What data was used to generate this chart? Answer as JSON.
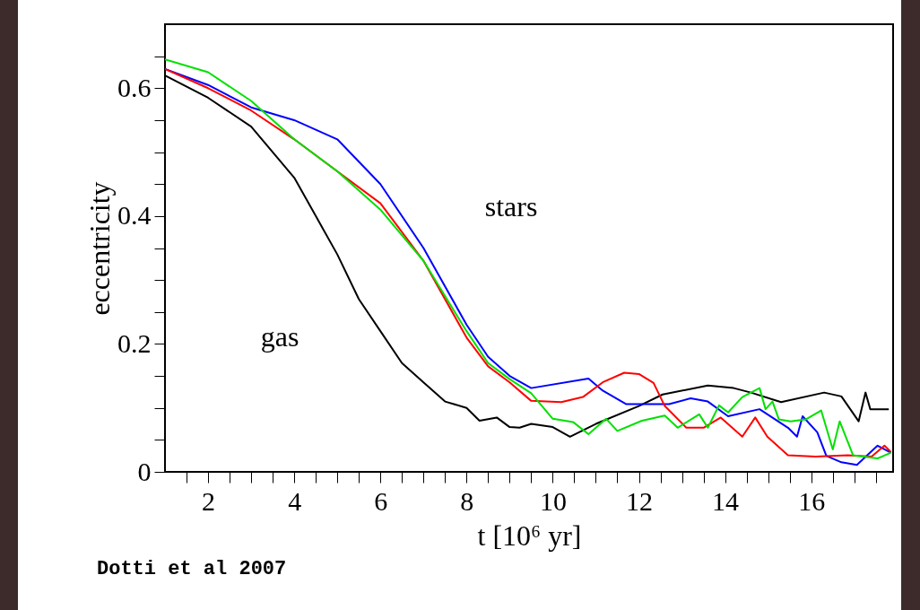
{
  "chart_data": {
    "type": "line",
    "xlabel": "t [10⁶ yr]",
    "ylabel": "eccentricity",
    "xlim": [
      1,
      17.9
    ],
    "ylim": [
      0,
      0.7
    ],
    "xticks": [
      {
        "value": 1.5,
        "label": null
      },
      2,
      {
        "value": 2.5,
        "label": null
      },
      {
        "value": 3,
        "label": null
      },
      {
        "value": 3.5,
        "label": null
      },
      4,
      {
        "value": 4.5,
        "label": null
      },
      {
        "value": 5,
        "label": null
      },
      {
        "value": 5.5,
        "label": null
      },
      6,
      {
        "value": 6.5,
        "label": null
      },
      {
        "value": 7,
        "label": null
      },
      {
        "value": 7.5,
        "label": null
      },
      8,
      {
        "value": 8.5,
        "label": null
      },
      {
        "value": 9,
        "label": null
      },
      {
        "value": 9.5,
        "label": null
      },
      10,
      {
        "value": 10.5,
        "label": null
      },
      {
        "value": 11,
        "label": null
      },
      {
        "value": 11.5,
        "label": null
      },
      12,
      {
        "value": 12.5,
        "label": null
      },
      {
        "value": 13,
        "label": null
      },
      {
        "value": 13.5,
        "label": null
      },
      14,
      {
        "value": 14.5,
        "label": null
      },
      {
        "value": 15,
        "label": null
      },
      {
        "value": 15.5,
        "label": null
      },
      16,
      {
        "value": 16.5,
        "label": null
      },
      {
        "value": 17,
        "label": null
      },
      {
        "value": 17.5,
        "label": null
      }
    ],
    "yticks": [
      0,
      {
        "value": 0.05,
        "label": null
      },
      {
        "value": 0.1,
        "label": null
      },
      {
        "value": 0.15,
        "label": null
      },
      0.2,
      {
        "value": 0.25,
        "label": null
      },
      {
        "value": 0.3,
        "label": null
      },
      {
        "value": 0.35,
        "label": null
      },
      0.4,
      {
        "value": 0.45,
        "label": null
      },
      {
        "value": 0.5,
        "label": null
      },
      {
        "value": 0.55,
        "label": null
      },
      0.6,
      {
        "value": 0.65,
        "label": null
      }
    ],
    "grid": false,
    "marker": "none",
    "line_style": "solid",
    "series": [
      {
        "color": "#000000",
        "x": [
          1,
          2,
          3,
          4,
          4.5,
          5,
          5.5,
          6,
          6.5,
          7,
          7.5,
          8,
          8.3,
          8.7,
          9,
          9.23,
          9.5,
          10,
          10.4,
          11,
          12,
          12.55,
          13.6,
          14.2,
          14.6,
          15.3,
          16.3,
          16.7,
          17.1,
          17.26,
          17.37,
          17.8
        ],
        "values": [
          0.62,
          0.585,
          0.54,
          0.46,
          0.4,
          0.34,
          0.27,
          0.22,
          0.17,
          0.14,
          0.11,
          0.1,
          0.08,
          0.085,
          0.07,
          0.069,
          0.075,
          0.07,
          0.055,
          0.075,
          0.103,
          0.121,
          0.135,
          0.131,
          0.124,
          0.109,
          0.124,
          0.118,
          0.079,
          0.124,
          0.098,
          0.098
        ]
      },
      {
        "color": "#0000ff",
        "x": [
          1,
          2,
          3,
          4,
          5,
          6,
          7,
          8,
          8.5,
          9,
          9.5,
          10.83,
          11.16,
          11.7,
          12.7,
          13.2,
          13.6,
          14.07,
          14.8,
          15.46,
          15.67,
          15.8,
          16.14,
          16.35,
          16.7,
          17.06,
          17.54,
          17.85
        ],
        "values": [
          0.63,
          0.605,
          0.57,
          0.55,
          0.52,
          0.45,
          0.35,
          0.23,
          0.18,
          0.15,
          0.131,
          0.146,
          0.127,
          0.106,
          0.106,
          0.115,
          0.11,
          0.087,
          0.098,
          0.069,
          0.055,
          0.087,
          0.062,
          0.025,
          0.015,
          0.011,
          0.041,
          0.03
        ]
      },
      {
        "color": "#ff0000",
        "x": [
          1,
          2,
          3,
          4,
          5,
          6,
          7,
          8,
          8.5,
          9,
          9.5,
          10.2,
          10.7,
          11.16,
          11.66,
          12,
          12.34,
          12.6,
          13.1,
          13.5,
          13.9,
          14.4,
          14.7,
          14.98,
          15.46,
          16.1,
          16.85,
          17.4,
          17.7,
          17.85
        ],
        "values": [
          0.63,
          0.6,
          0.565,
          0.52,
          0.47,
          0.42,
          0.33,
          0.21,
          0.165,
          0.14,
          0.111,
          0.109,
          0.117,
          0.14,
          0.155,
          0.153,
          0.139,
          0.103,
          0.069,
          0.069,
          0.085,
          0.055,
          0.085,
          0.055,
          0.026,
          0.024,
          0.026,
          0.024,
          0.041,
          0.031
        ]
      },
      {
        "color": "#00e000",
        "x": [
          1,
          2,
          3,
          4,
          5,
          6,
          7,
          8,
          8.5,
          9,
          9.5,
          10,
          10.47,
          10.83,
          11.24,
          11.5,
          12.07,
          12.6,
          12.9,
          13.4,
          13.6,
          13.86,
          14.07,
          14.4,
          14.8,
          14.94,
          15.1,
          15.25,
          15.52,
          15.87,
          16.23,
          16.5,
          16.66,
          16.97,
          17.54,
          17.85
        ],
        "values": [
          0.645,
          0.625,
          0.58,
          0.52,
          0.47,
          0.41,
          0.33,
          0.22,
          0.17,
          0.145,
          0.123,
          0.083,
          0.078,
          0.059,
          0.083,
          0.064,
          0.08,
          0.088,
          0.069,
          0.09,
          0.069,
          0.104,
          0.093,
          0.117,
          0.131,
          0.098,
          0.11,
          0.082,
          0.079,
          0.082,
          0.096,
          0.035,
          0.079,
          0.026,
          0.021,
          0.03
        ]
      }
    ],
    "annotations": [
      "stars",
      "gas",
      "Dotti et al 2007"
    ]
  }
}
